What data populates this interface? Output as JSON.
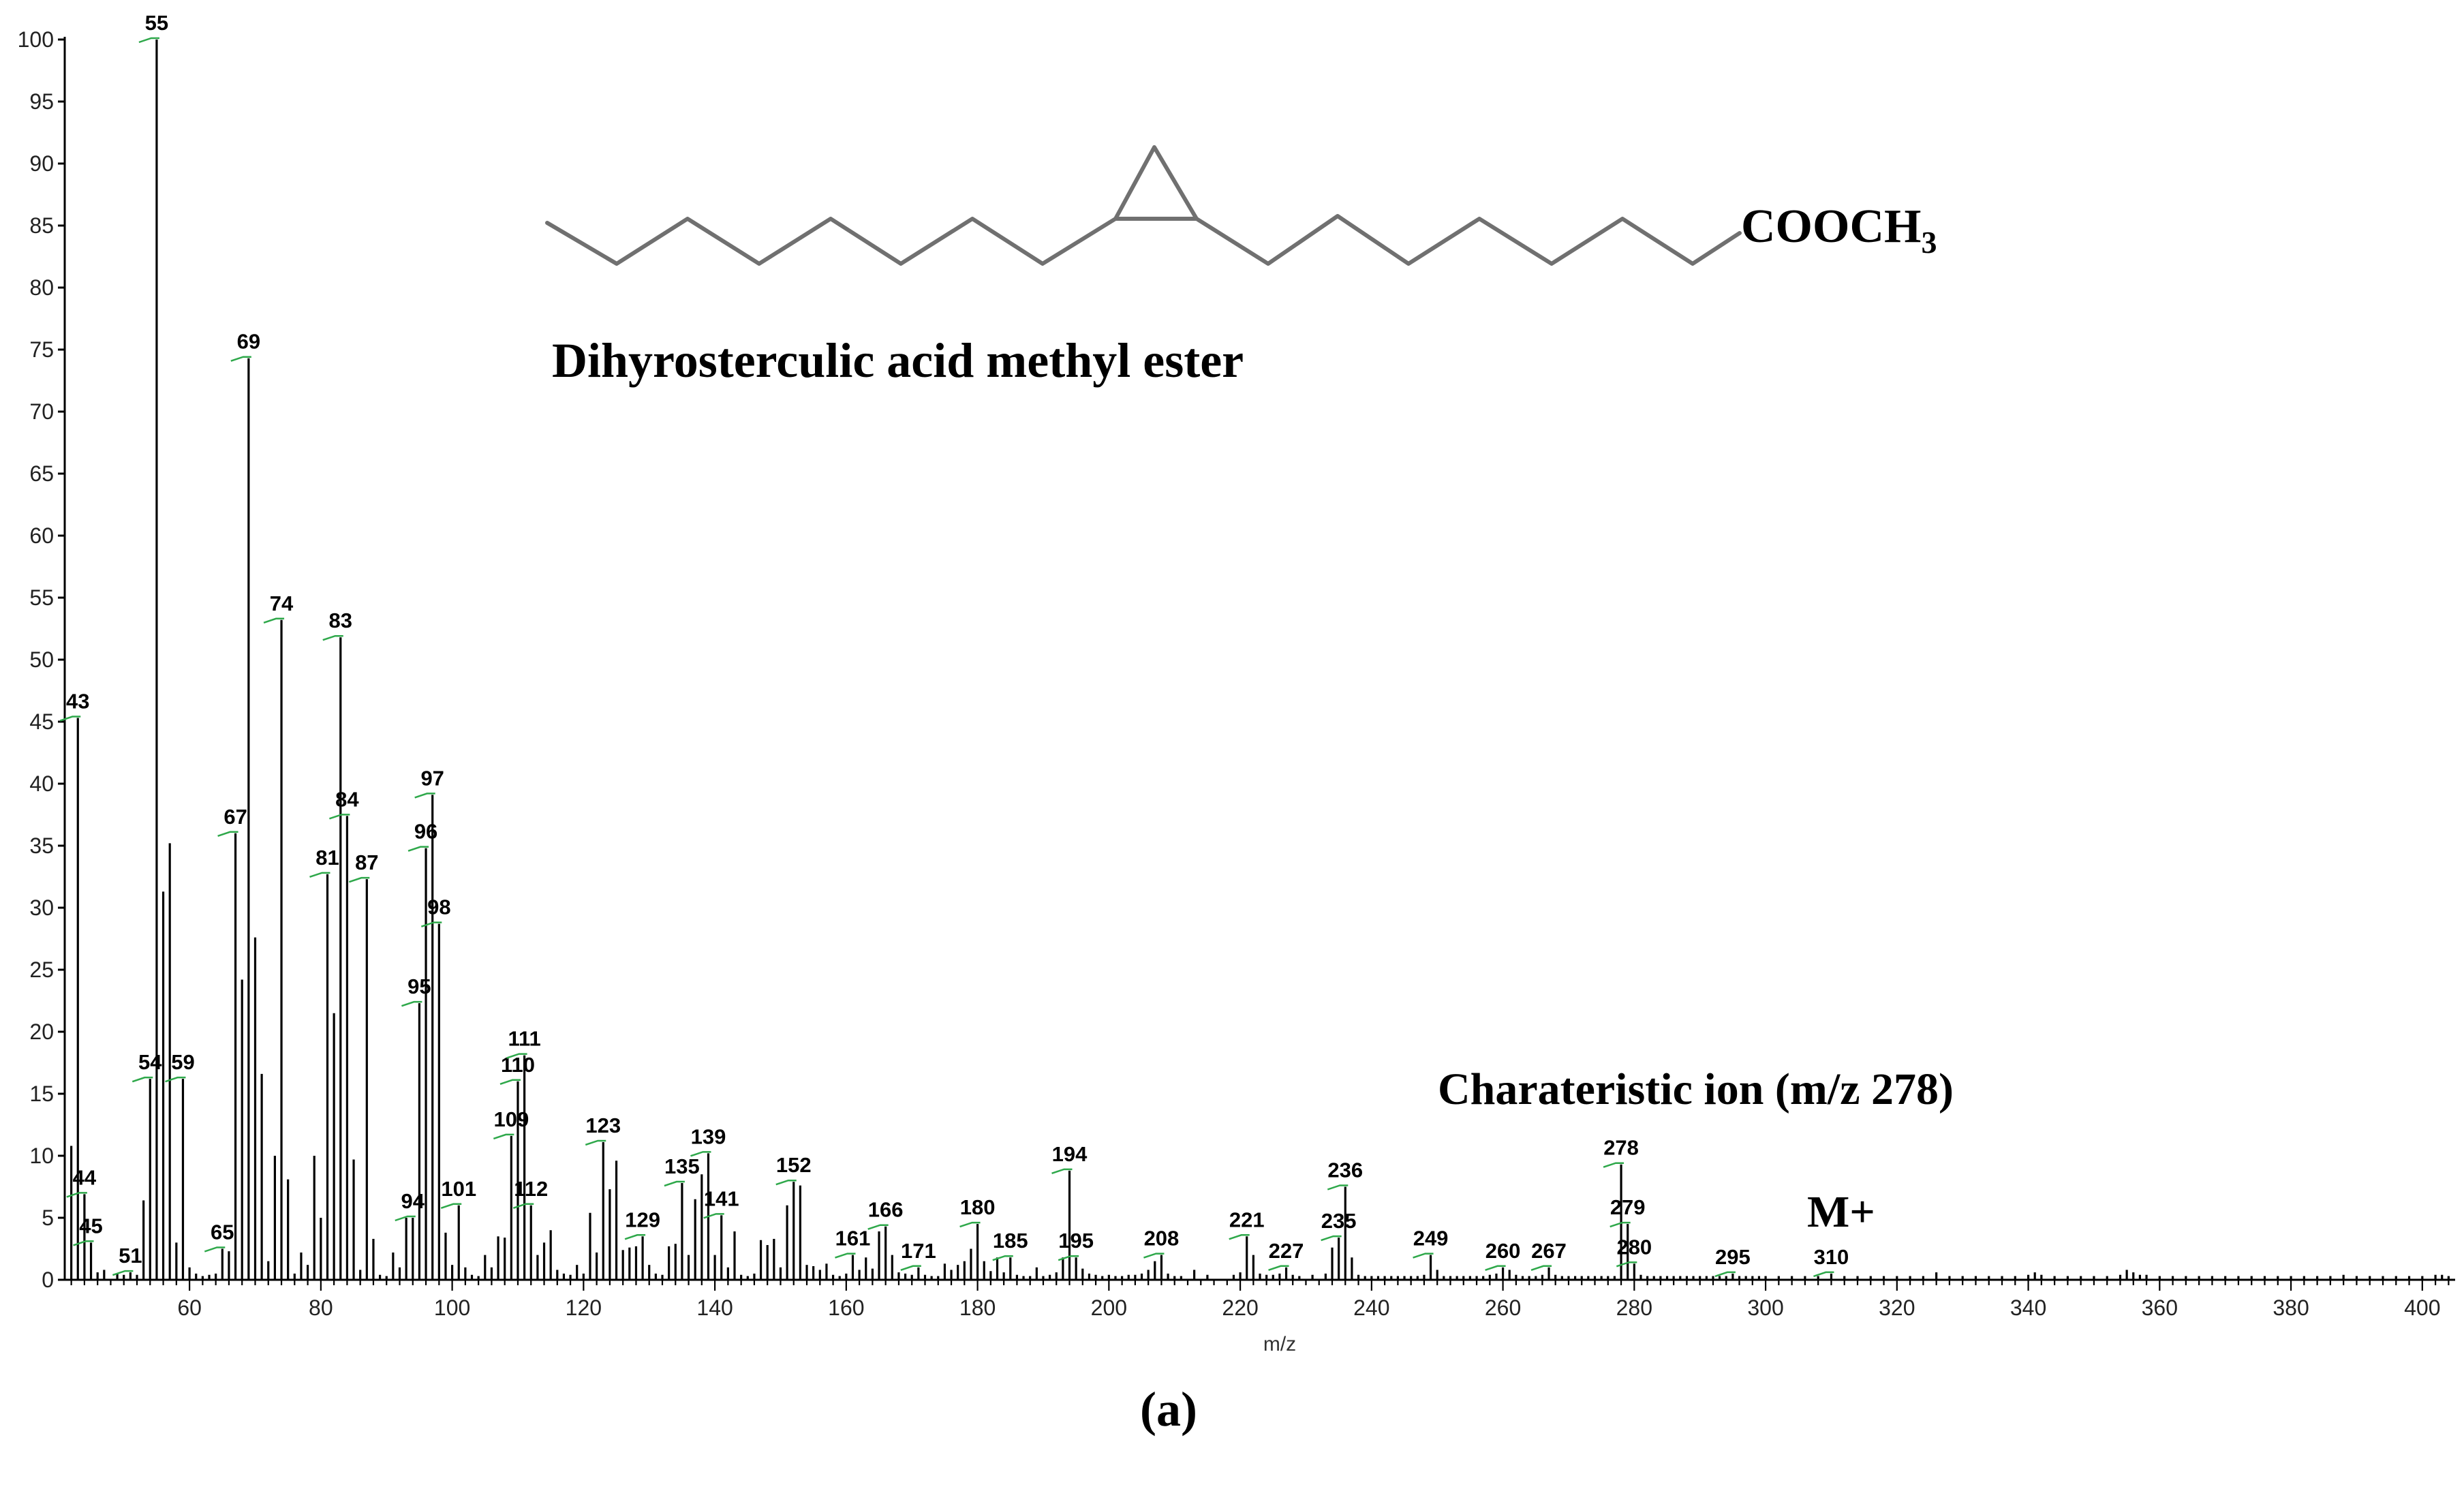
{
  "chart_data": {
    "type": "bar",
    "xlabel": "m/z",
    "ylabel": "",
    "xlim": [
      41,
      405
    ],
    "ylim": [
      0,
      100
    ],
    "xticks": [
      60,
      80,
      100,
      120,
      140,
      160,
      180,
      200,
      220,
      240,
      260,
      280,
      300,
      320,
      340,
      360,
      380,
      400
    ],
    "yticks": [
      0,
      5,
      10,
      15,
      20,
      25,
      30,
      35,
      40,
      45,
      50,
      55,
      60,
      65,
      70,
      75,
      80,
      85,
      90,
      95,
      100
    ],
    "grid": false,
    "peaks": [
      {
        "x": 42,
        "y": 10.8
      },
      {
        "x": 43,
        "y": 45.3,
        "label": "43"
      },
      {
        "x": 44,
        "y": 6.9,
        "label": "44"
      },
      {
        "x": 45,
        "y": 3.0,
        "label": "45"
      },
      {
        "x": 46,
        "y": 0.6
      },
      {
        "x": 47,
        "y": 0.8
      },
      {
        "x": 49,
        "y": 0.5
      },
      {
        "x": 50,
        "y": 0.4
      },
      {
        "x": 51,
        "y": 0.6,
        "label": "51"
      },
      {
        "x": 52,
        "y": 0.4
      },
      {
        "x": 53,
        "y": 6.4
      },
      {
        "x": 54,
        "y": 16.2,
        "label": "54"
      },
      {
        "x": 55,
        "y": 100,
        "label": "55"
      },
      {
        "x": 56,
        "y": 31.3
      },
      {
        "x": 57,
        "y": 35.2
      },
      {
        "x": 58,
        "y": 3.0
      },
      {
        "x": 59,
        "y": 16.2,
        "label": "59"
      },
      {
        "x": 60,
        "y": 1.0
      },
      {
        "x": 61,
        "y": 0.5
      },
      {
        "x": 62,
        "y": 0.3
      },
      {
        "x": 63,
        "y": 0.4
      },
      {
        "x": 64,
        "y": 0.5
      },
      {
        "x": 65,
        "y": 2.5,
        "label": "65"
      },
      {
        "x": 66,
        "y": 2.3
      },
      {
        "x": 67,
        "y": 36.0,
        "label": "67"
      },
      {
        "x": 68,
        "y": 24.2
      },
      {
        "x": 69,
        "y": 74.3,
        "label": "69"
      },
      {
        "x": 70,
        "y": 27.6
      },
      {
        "x": 71,
        "y": 16.6
      },
      {
        "x": 72,
        "y": 1.5
      },
      {
        "x": 73,
        "y": 10.0
      },
      {
        "x": 74,
        "y": 53.2,
        "label": "74"
      },
      {
        "x": 75,
        "y": 8.1
      },
      {
        "x": 76,
        "y": 0.5
      },
      {
        "x": 77,
        "y": 2.2
      },
      {
        "x": 78,
        "y": 1.2
      },
      {
        "x": 79,
        "y": 10.0
      },
      {
        "x": 80,
        "y": 5.0
      },
      {
        "x": 81,
        "y": 32.7,
        "label": "81"
      },
      {
        "x": 82,
        "y": 21.5
      },
      {
        "x": 83,
        "y": 51.8,
        "label": "83"
      },
      {
        "x": 84,
        "y": 37.4,
        "label": "84"
      },
      {
        "x": 85,
        "y": 9.7
      },
      {
        "x": 86,
        "y": 0.8
      },
      {
        "x": 87,
        "y": 32.3,
        "label": "87"
      },
      {
        "x": 88,
        "y": 3.3
      },
      {
        "x": 89,
        "y": 0.4
      },
      {
        "x": 90,
        "y": 0.3
      },
      {
        "x": 91,
        "y": 2.2
      },
      {
        "x": 92,
        "y": 1.0
      },
      {
        "x": 93,
        "y": 5.0
      },
      {
        "x": 94,
        "y": 5.0,
        "label": "94"
      },
      {
        "x": 95,
        "y": 22.3,
        "label": "95"
      },
      {
        "x": 96,
        "y": 34.8,
        "label": "96"
      },
      {
        "x": 97,
        "y": 39.1,
        "label": "97"
      },
      {
        "x": 98,
        "y": 28.7,
        "label": "98"
      },
      {
        "x": 99,
        "y": 3.8
      },
      {
        "x": 100,
        "y": 1.2
      },
      {
        "x": 101,
        "y": 6.0,
        "label": "101"
      },
      {
        "x": 102,
        "y": 1.0
      },
      {
        "x": 103,
        "y": 0.4
      },
      {
        "x": 104,
        "y": 0.3
      },
      {
        "x": 105,
        "y": 2.0
      },
      {
        "x": 106,
        "y": 1.0
      },
      {
        "x": 107,
        "y": 3.5
      },
      {
        "x": 108,
        "y": 3.4
      },
      {
        "x": 109,
        "y": 11.6,
        "label": "109"
      },
      {
        "x": 110,
        "y": 16.0,
        "label": "110"
      },
      {
        "x": 111,
        "y": 18.1,
        "label": "111"
      },
      {
        "x": 112,
        "y": 6.0,
        "label": "112"
      },
      {
        "x": 113,
        "y": 2.0
      },
      {
        "x": 114,
        "y": 3.0
      },
      {
        "x": 115,
        "y": 4.0
      },
      {
        "x": 116,
        "y": 0.8
      },
      {
        "x": 117,
        "y": 0.5
      },
      {
        "x": 118,
        "y": 0.4
      },
      {
        "x": 119,
        "y": 1.2
      },
      {
        "x": 120,
        "y": 0.5
      },
      {
        "x": 121,
        "y": 5.4
      },
      {
        "x": 122,
        "y": 2.2
      },
      {
        "x": 123,
        "y": 11.1,
        "label": "123"
      },
      {
        "x": 124,
        "y": 7.3
      },
      {
        "x": 125,
        "y": 9.6
      },
      {
        "x": 126,
        "y": 2.4
      },
      {
        "x": 127,
        "y": 2.6
      },
      {
        "x": 128,
        "y": 2.7
      },
      {
        "x": 129,
        "y": 3.5,
        "label": "129"
      },
      {
        "x": 130,
        "y": 1.2
      },
      {
        "x": 131,
        "y": 0.5
      },
      {
        "x": 132,
        "y": 0.4
      },
      {
        "x": 133,
        "y": 2.7
      },
      {
        "x": 134,
        "y": 2.9
      },
      {
        "x": 135,
        "y": 7.8,
        "label": "135"
      },
      {
        "x": 136,
        "y": 2.0
      },
      {
        "x": 137,
        "y": 6.5
      },
      {
        "x": 138,
        "y": 8.5
      },
      {
        "x": 139,
        "y": 10.2,
        "label": "139"
      },
      {
        "x": 140,
        "y": 2.0
      },
      {
        "x": 141,
        "y": 5.2,
        "label": "141"
      },
      {
        "x": 142,
        "y": 1.0
      },
      {
        "x": 143,
        "y": 3.9
      },
      {
        "x": 144,
        "y": 0.4
      },
      {
        "x": 145,
        "y": 0.3
      },
      {
        "x": 146,
        "y": 0.5
      },
      {
        "x": 147,
        "y": 3.2
      },
      {
        "x": 148,
        "y": 2.8
      },
      {
        "x": 149,
        "y": 3.3
      },
      {
        "x": 150,
        "y": 1.0
      },
      {
        "x": 151,
        "y": 6.0
      },
      {
        "x": 152,
        "y": 7.9,
        "label": "152"
      },
      {
        "x": 153,
        "y": 7.6
      },
      {
        "x": 154,
        "y": 1.2
      },
      {
        "x": 155,
        "y": 1.1
      },
      {
        "x": 156,
        "y": 0.8
      },
      {
        "x": 157,
        "y": 1.3
      },
      {
        "x": 158,
        "y": 0.4
      },
      {
        "x": 159,
        "y": 0.3
      },
      {
        "x": 160,
        "y": 0.5
      },
      {
        "x": 161,
        "y": 2.0,
        "label": "161"
      },
      {
        "x": 162,
        "y": 0.8
      },
      {
        "x": 163,
        "y": 1.8
      },
      {
        "x": 164,
        "y": 0.9
      },
      {
        "x": 165,
        "y": 3.9
      },
      {
        "x": 166,
        "y": 4.3,
        "label": "166"
      },
      {
        "x": 167,
        "y": 2.0
      },
      {
        "x": 168,
        "y": 0.6
      },
      {
        "x": 169,
        "y": 0.5
      },
      {
        "x": 170,
        "y": 0.4
      },
      {
        "x": 171,
        "y": 1.0,
        "label": "171"
      },
      {
        "x": 172,
        "y": 0.4
      },
      {
        "x": 173,
        "y": 0.3
      },
      {
        "x": 174,
        "y": 0.3
      },
      {
        "x": 175,
        "y": 1.3
      },
      {
        "x": 176,
        "y": 0.8
      },
      {
        "x": 177,
        "y": 1.2
      },
      {
        "x": 178,
        "y": 1.5
      },
      {
        "x": 179,
        "y": 2.5
      },
      {
        "x": 180,
        "y": 4.5,
        "label": "180"
      },
      {
        "x": 181,
        "y": 1.5
      },
      {
        "x": 182,
        "y": 0.7
      },
      {
        "x": 183,
        "y": 1.8
      },
      {
        "x": 184,
        "y": 0.6
      },
      {
        "x": 185,
        "y": 1.8,
        "label": "185"
      },
      {
        "x": 186,
        "y": 0.4
      },
      {
        "x": 187,
        "y": 0.3
      },
      {
        "x": 188,
        "y": 0.3
      },
      {
        "x": 189,
        "y": 1.0
      },
      {
        "x": 190,
        "y": 0.3
      },
      {
        "x": 191,
        "y": 0.4
      },
      {
        "x": 192,
        "y": 0.6
      },
      {
        "x": 193,
        "y": 1.8
      },
      {
        "x": 194,
        "y": 8.8,
        "label": "194"
      },
      {
        "x": 195,
        "y": 1.8,
        "label": "195"
      },
      {
        "x": 196,
        "y": 0.9
      },
      {
        "x": 197,
        "y": 0.5
      },
      {
        "x": 198,
        "y": 0.4
      },
      {
        "x": 199,
        "y": 0.3
      },
      {
        "x": 200,
        "y": 0.4
      },
      {
        "x": 201,
        "y": 0.3
      },
      {
        "x": 202,
        "y": 0.3
      },
      {
        "x": 203,
        "y": 0.4
      },
      {
        "x": 204,
        "y": 0.4
      },
      {
        "x": 205,
        "y": 0.5
      },
      {
        "x": 206,
        "y": 0.8
      },
      {
        "x": 207,
        "y": 1.5
      },
      {
        "x": 208,
        "y": 2.0,
        "label": "208"
      },
      {
        "x": 209,
        "y": 0.5
      },
      {
        "x": 210,
        "y": 0.3
      },
      {
        "x": 211,
        "y": 0.3
      },
      {
        "x": 213,
        "y": 0.8
      },
      {
        "x": 215,
        "y": 0.4
      },
      {
        "x": 219,
        "y": 0.4
      },
      {
        "x": 220,
        "y": 0.6
      },
      {
        "x": 221,
        "y": 3.5,
        "label": "221"
      },
      {
        "x": 222,
        "y": 2.0
      },
      {
        "x": 223,
        "y": 0.5
      },
      {
        "x": 224,
        "y": 0.4
      },
      {
        "x": 225,
        "y": 0.4
      },
      {
        "x": 226,
        "y": 0.5
      },
      {
        "x": 227,
        "y": 1.0,
        "label": "227"
      },
      {
        "x": 228,
        "y": 0.4
      },
      {
        "x": 229,
        "y": 0.3
      },
      {
        "x": 231,
        "y": 0.4
      },
      {
        "x": 233,
        "y": 0.5
      },
      {
        "x": 234,
        "y": 2.6
      },
      {
        "x": 235,
        "y": 3.4,
        "label": "235"
      },
      {
        "x": 236,
        "y": 7.5,
        "label": "236"
      },
      {
        "x": 237,
        "y": 1.8
      },
      {
        "x": 238,
        "y": 0.4
      },
      {
        "x": 239,
        "y": 0.3
      },
      {
        "x": 240,
        "y": 0.3
      },
      {
        "x": 241,
        "y": 0.3
      },
      {
        "x": 242,
        "y": 0.3
      },
      {
        "x": 243,
        "y": 0.3
      },
      {
        "x": 244,
        "y": 0.3
      },
      {
        "x": 245,
        "y": 0.3
      },
      {
        "x": 246,
        "y": 0.3
      },
      {
        "x": 247,
        "y": 0.3
      },
      {
        "x": 248,
        "y": 0.4
      },
      {
        "x": 249,
        "y": 2.0,
        "label": "249"
      },
      {
        "x": 250,
        "y": 0.8
      },
      {
        "x": 251,
        "y": 0.3
      },
      {
        "x": 252,
        "y": 0.3
      },
      {
        "x": 253,
        "y": 0.3
      },
      {
        "x": 254,
        "y": 0.3
      },
      {
        "x": 255,
        "y": 0.3
      },
      {
        "x": 256,
        "y": 0.3
      },
      {
        "x": 257,
        "y": 0.3
      },
      {
        "x": 258,
        "y": 0.4
      },
      {
        "x": 259,
        "y": 0.5
      },
      {
        "x": 260,
        "y": 1.0,
        "label": "260"
      },
      {
        "x": 261,
        "y": 0.8
      },
      {
        "x": 262,
        "y": 0.4
      },
      {
        "x": 263,
        "y": 0.3
      },
      {
        "x": 264,
        "y": 0.3
      },
      {
        "x": 265,
        "y": 0.3
      },
      {
        "x": 266,
        "y": 0.4
      },
      {
        "x": 267,
        "y": 1.0,
        "label": "267"
      },
      {
        "x": 268,
        "y": 0.4
      },
      {
        "x": 269,
        "y": 0.3
      },
      {
        "x": 270,
        "y": 0.3
      },
      {
        "x": 271,
        "y": 0.3
      },
      {
        "x": 272,
        "y": 0.3
      },
      {
        "x": 273,
        "y": 0.3
      },
      {
        "x": 274,
        "y": 0.3
      },
      {
        "x": 275,
        "y": 0.3
      },
      {
        "x": 276,
        "y": 0.3
      },
      {
        "x": 277,
        "y": 0.3
      },
      {
        "x": 278,
        "y": 9.3,
        "label": "278"
      },
      {
        "x": 279,
        "y": 4.5,
        "label": "279"
      },
      {
        "x": 280,
        "y": 1.3,
        "label": "280"
      },
      {
        "x": 281,
        "y": 0.4
      },
      {
        "x": 282,
        "y": 0.3
      },
      {
        "x": 283,
        "y": 0.3
      },
      {
        "x": 284,
        "y": 0.3
      },
      {
        "x": 285,
        "y": 0.3
      },
      {
        "x": 286,
        "y": 0.3
      },
      {
        "x": 287,
        "y": 0.3
      },
      {
        "x": 288,
        "y": 0.3
      },
      {
        "x": 289,
        "y": 0.3
      },
      {
        "x": 290,
        "y": 0.3
      },
      {
        "x": 291,
        "y": 0.3
      },
      {
        "x": 292,
        "y": 0.3
      },
      {
        "x": 293,
        "y": 0.3
      },
      {
        "x": 294,
        "y": 0.3
      },
      {
        "x": 295,
        "y": 0.5,
        "label": "295"
      },
      {
        "x": 296,
        "y": 0.3
      },
      {
        "x": 297,
        "y": 0.3
      },
      {
        "x": 298,
        "y": 0.3
      },
      {
        "x": 299,
        "y": 0.3
      },
      {
        "x": 300,
        "y": 0.3
      },
      {
        "x": 302,
        "y": 0.3
      },
      {
        "x": 304,
        "y": 0.3
      },
      {
        "x": 306,
        "y": 0.3
      },
      {
        "x": 308,
        "y": 0.3
      },
      {
        "x": 310,
        "y": 0.5,
        "label": "310"
      },
      {
        "x": 312,
        "y": 0.3
      },
      {
        "x": 314,
        "y": 0.3
      },
      {
        "x": 316,
        "y": 0.3
      },
      {
        "x": 318,
        "y": 0.3
      },
      {
        "x": 320,
        "y": 0.3
      },
      {
        "x": 322,
        "y": 0.3
      },
      {
        "x": 324,
        "y": 0.3
      },
      {
        "x": 326,
        "y": 0.6
      },
      {
        "x": 328,
        "y": 0.3
      },
      {
        "x": 330,
        "y": 0.3
      },
      {
        "x": 332,
        "y": 0.3
      },
      {
        "x": 334,
        "y": 0.3
      },
      {
        "x": 336,
        "y": 0.3
      },
      {
        "x": 338,
        "y": 0.3
      },
      {
        "x": 340,
        "y": 0.4
      },
      {
        "x": 341,
        "y": 0.6
      },
      {
        "x": 342,
        "y": 0.4
      },
      {
        "x": 344,
        "y": 0.3
      },
      {
        "x": 346,
        "y": 0.3
      },
      {
        "x": 348,
        "y": 0.3
      },
      {
        "x": 350,
        "y": 0.3
      },
      {
        "x": 352,
        "y": 0.3
      },
      {
        "x": 354,
        "y": 0.4
      },
      {
        "x": 355,
        "y": 0.8
      },
      {
        "x": 356,
        "y": 0.6
      },
      {
        "x": 357,
        "y": 0.4
      },
      {
        "x": 358,
        "y": 0.4
      },
      {
        "x": 360,
        "y": 0.3
      },
      {
        "x": 362,
        "y": 0.3
      },
      {
        "x": 364,
        "y": 0.3
      },
      {
        "x": 366,
        "y": 0.3
      },
      {
        "x": 368,
        "y": 0.3
      },
      {
        "x": 370,
        "y": 0.3
      },
      {
        "x": 372,
        "y": 0.3
      },
      {
        "x": 374,
        "y": 0.3
      },
      {
        "x": 376,
        "y": 0.3
      },
      {
        "x": 378,
        "y": 0.3
      },
      {
        "x": 380,
        "y": 0.3
      },
      {
        "x": 382,
        "y": 0.3
      },
      {
        "x": 384,
        "y": 0.3
      },
      {
        "x": 386,
        "y": 0.3
      },
      {
        "x": 388,
        "y": 0.4
      },
      {
        "x": 390,
        "y": 0.3
      },
      {
        "x": 392,
        "y": 0.3
      },
      {
        "x": 394,
        "y": 0.3
      },
      {
        "x": 396,
        "y": 0.3
      },
      {
        "x": 398,
        "y": 0.3
      },
      {
        "x": 400,
        "y": 0.3
      },
      {
        "x": 402,
        "y": 0.4
      },
      {
        "x": 403,
        "y": 0.4
      },
      {
        "x": 404,
        "y": 0.3
      }
    ],
    "annotations": {
      "compound_name": "Dihyrosterculic acid methyl ester",
      "end_group": "COOCH",
      "end_group_subscript": "3",
      "characteristic_ion": "Charateristic ion (m/z 278)",
      "molecular_ion": "M+"
    },
    "panel_label": "(a)"
  },
  "colors": {
    "bar": "#000000",
    "axis": "#000000",
    "label_tick": "#2ea84a",
    "structure": "#707070",
    "text": "#000000"
  }
}
